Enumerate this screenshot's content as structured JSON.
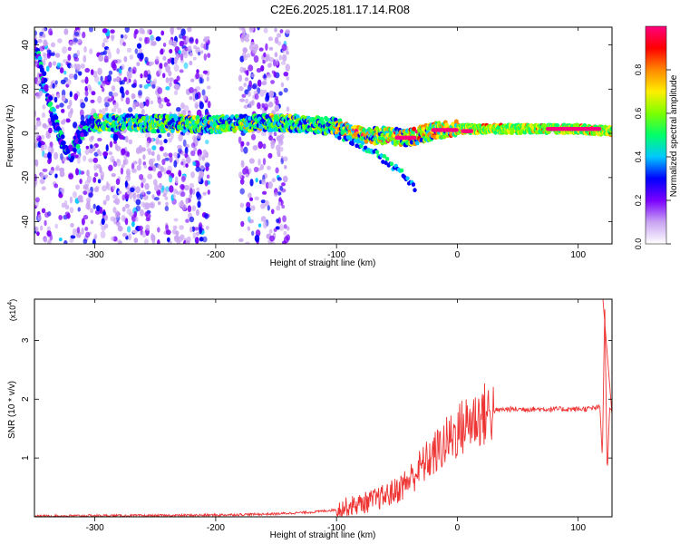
{
  "title": "C2E6.2025.181.17.14.R08",
  "chart_data": [
    {
      "type": "heatmap",
      "xlabel": "Height of straight line (km)",
      "ylabel": "Frequency (Hz)",
      "xlim": [
        -350,
        128
      ],
      "ylim": [
        -50,
        48
      ],
      "xticks": [
        -300,
        -200,
        -100,
        0,
        100
      ],
      "yticks": [
        -40,
        -20,
        0,
        20,
        40
      ],
      "colorbar": {
        "label": "Normalized spectral amplitude",
        "range": [
          0,
          1
        ],
        "ticks": [
          "0.0",
          "0.2",
          "0.4",
          "0.6",
          "0.8"
        ],
        "colors": [
          "#ffffff",
          "#c9a4f2",
          "#7a00ff",
          "#0000ff",
          "#00c8ff",
          "#00ff6a",
          "#7dff00",
          "#ffee00",
          "#ff8800",
          "#ff0000",
          "#ff007f"
        ]
      },
      "ridge": {
        "x": [
          -350,
          -340,
          -330,
          -320,
          -310,
          -300,
          -200,
          -150,
          -120,
          -100,
          -80,
          -60,
          -40,
          -20,
          0,
          50,
          100,
          128
        ],
        "y": [
          40,
          20,
          0,
          -10,
          2,
          5,
          4,
          5,
          4,
          3,
          -1,
          -1,
          -2,
          1,
          2,
          2,
          2,
          1
        ]
      },
      "side_branch": {
        "x": [
          -100,
          -80,
          -60,
          -45,
          -35
        ],
        "y": [
          0,
          -5,
          -12,
          -18,
          -25
        ]
      }
    },
    {
      "type": "line",
      "xlabel": "Height of straight line (km)",
      "ylabel": "SNR (10 * v/v)",
      "y_multiplier": "(x10",
      "y_multiplier_exp": "4",
      "y_multiplier_close": ")",
      "xlim": [
        -350,
        128
      ],
      "ylim": [
        0,
        3.7
      ],
      "xticks": [
        -300,
        -200,
        -100,
        0,
        100
      ],
      "yticks": [
        1,
        2,
        3
      ],
      "color": "#ee3333",
      "series": [
        {
          "x": [
            -350,
            -300,
            -250,
            -200,
            -150,
            -120,
            -100,
            -90,
            -80,
            -70,
            -60,
            -50,
            -40,
            -30,
            -20,
            -10,
            0,
            10,
            20,
            30,
            40,
            60,
            80,
            100,
            110,
            118,
            120,
            122,
            124,
            126,
            128
          ],
          "y": [
            0.01,
            0.02,
            0.02,
            0.03,
            0.05,
            0.08,
            0.12,
            0.18,
            0.22,
            0.28,
            0.35,
            0.45,
            0.62,
            0.85,
            1.05,
            1.25,
            1.45,
            1.62,
            1.72,
            1.8,
            1.83,
            1.83,
            1.83,
            1.83,
            1.84,
            1.86,
            1.0,
            3.6,
            0.7,
            1.85,
            1.8
          ]
        }
      ]
    }
  ]
}
